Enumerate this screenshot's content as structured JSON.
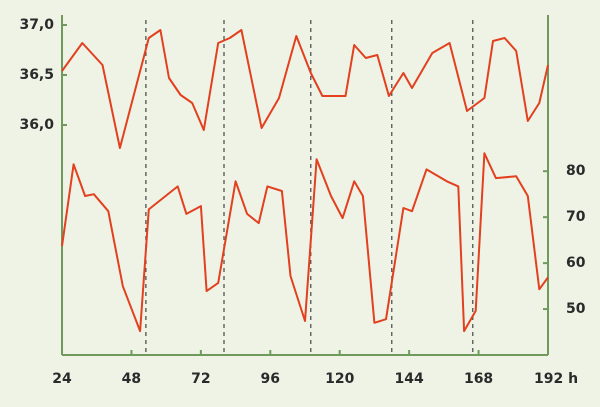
{
  "chart_data": {
    "type": "line",
    "xlim": [
      24,
      192
    ],
    "xticks": [
      24,
      48,
      72,
      96,
      120,
      144,
      168,
      {
        "value": 192,
        "label": "192 h"
      }
    ],
    "ylim": [
      33.7,
      37.1
    ],
    "yticks": [
      {
        "value": 36,
        "label": "36,0"
      },
      {
        "value": 36.5,
        "label": "36,5"
      },
      {
        "value": 37,
        "label": "37,0"
      }
    ],
    "y2lim": [
      40,
      114
    ],
    "y2ticks": [
      50,
      60,
      70,
      80
    ],
    "vlines": [
      53,
      80,
      110,
      138,
      166
    ],
    "series": [
      {
        "color": "#e2401f",
        "axis": "y",
        "x": [
          24,
          31,
          38,
          44,
          54,
          58,
          61,
          65,
          69,
          73,
          78,
          82,
          86,
          93,
          99,
          105,
          110,
          114,
          122,
          125,
          129,
          133,
          137,
          142,
          145,
          152,
          158,
          164,
          170,
          173,
          177,
          181,
          185,
          189,
          192
        ],
        "values": [
          36.54,
          36.82,
          36.6,
          35.77,
          36.87,
          36.95,
          36.47,
          36.3,
          36.22,
          35.95,
          36.82,
          36.87,
          36.95,
          35.97,
          36.27,
          36.89,
          36.52,
          36.29,
          36.29,
          36.8,
          36.67,
          36.7,
          36.29,
          36.52,
          36.37,
          36.72,
          36.82,
          36.14,
          36.27,
          36.84,
          36.87,
          36.74,
          36.04,
          36.22,
          36.6
        ]
      },
      {
        "color": "#e2401f",
        "axis": "y2",
        "x": [
          24,
          28,
          32,
          35,
          40,
          45,
          51,
          54,
          64,
          67,
          72,
          74,
          78,
          84,
          88,
          92,
          95,
          100,
          103,
          108,
          112,
          117,
          121,
          125,
          128,
          132,
          136,
          142,
          145,
          150,
          157,
          161,
          163,
          167,
          170,
          174,
          181,
          185,
          189,
          192
        ],
        "values": [
          63.7,
          81.5,
          74.6,
          75,
          71.3,
          55,
          45.2,
          71.7,
          76.7,
          70.7,
          72.4,
          53.9,
          55.7,
          77.8,
          70.7,
          68.7,
          76.7,
          75.7,
          57.2,
          47.4,
          82.6,
          74.6,
          69.8,
          77.8,
          74.6,
          47,
          47.8,
          72,
          71.3,
          80.4,
          77.8,
          76.7,
          45.2,
          49.6,
          83.9,
          78.5,
          78.9,
          74.6,
          54.3,
          56.9
        ]
      }
    ]
  }
}
